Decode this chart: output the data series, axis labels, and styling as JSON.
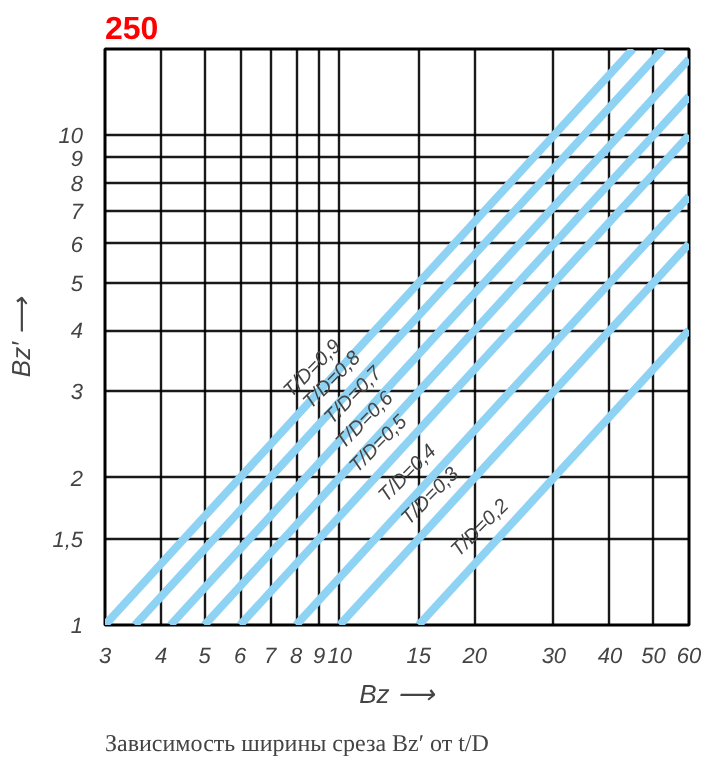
{
  "chart_data": {
    "type": "line",
    "title": "250",
    "xlabel": "Bz ⟶",
    "ylabel": "Bz′ ⟶",
    "log": "xy",
    "grid": true,
    "line_style": "solid",
    "marker": "none",
    "xlim": [
      3,
      60
    ],
    "ylim": [
      1,
      15
    ],
    "xticks": [
      3,
      4,
      5,
      6,
      7,
      8,
      9,
      10,
      15,
      20,
      30,
      40,
      50,
      60
    ],
    "yticks": [
      1,
      {
        "value": 1.5,
        "label": "1,5"
      },
      2,
      3,
      4,
      5,
      6,
      7,
      8,
      9,
      10
    ],
    "series": [
      {
        "name": "T/D=0,9",
        "color": "#8fd3f4",
        "x": [
          3,
          45
        ],
        "values": [
          1,
          15
        ]
      },
      {
        "name": "T/D=0,8",
        "color": "#8fd3f4",
        "x": [
          3.5,
          52.5
        ],
        "values": [
          1,
          15
        ]
      },
      {
        "name": "T/D=0,7",
        "color": "#8fd3f4",
        "x": [
          4.2,
          60
        ],
        "values": [
          1,
          14.3
        ]
      },
      {
        "name": "T/D=0,6",
        "color": "#8fd3f4",
        "x": [
          5,
          60
        ],
        "values": [
          1,
          12
        ]
      },
      {
        "name": "T/D=0,5",
        "color": "#8fd3f4",
        "x": [
          6,
          60
        ],
        "values": [
          1,
          10
        ]
      },
      {
        "name": "T/D=0,4",
        "color": "#8fd3f4",
        "x": [
          8,
          60
        ],
        "values": [
          1,
          7.5
        ]
      },
      {
        "name": "T/D=0,3",
        "color": "#8fd3f4",
        "x": [
          10,
          60
        ],
        "values": [
          1,
          6
        ]
      },
      {
        "name": "T/D=0,2",
        "color": "#8fd3f4",
        "x": [
          15,
          60
        ],
        "values": [
          1,
          4
        ]
      }
    ],
    "annotations": [
      "Зависимость ширины среза Bz′ от t/D"
    ]
  }
}
